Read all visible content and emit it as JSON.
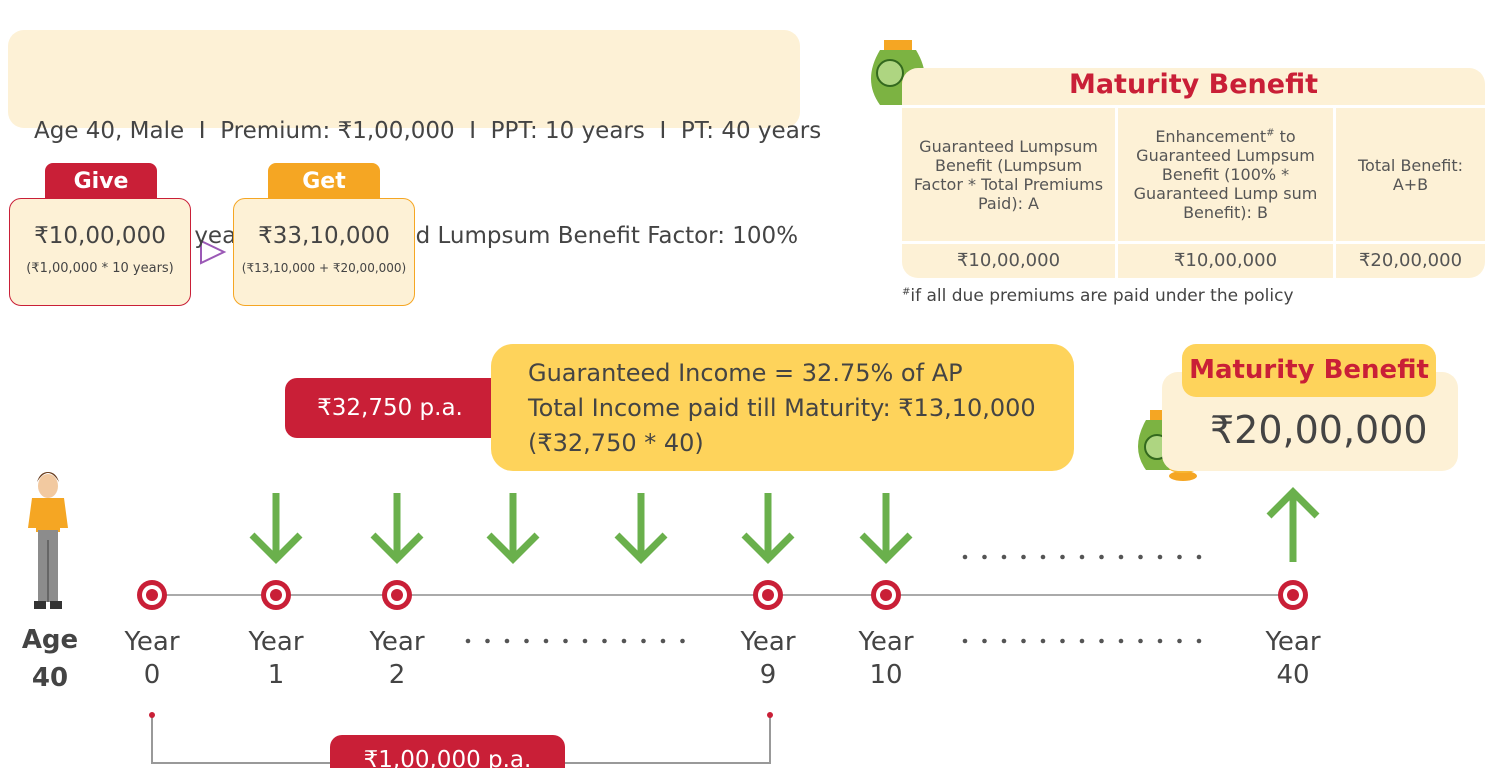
{
  "summary": {
    "lines": [
      "Age 40, Male  I  Premium: ₹1,00,000  I  PPT: 10 years  I  PT: 40 years",
      "Deferment: 0 years  I  Guaranteed Lumpsum Benefit Factor: 100%"
    ]
  },
  "give": {
    "label": "Give",
    "amount": "₹10,00,000",
    "note": "(₹1,00,000 * 10 years)"
  },
  "get": {
    "label": "Get",
    "amount": "₹33,10,000",
    "note": "(₹13,10,000 + ₹20,00,000)"
  },
  "maturity_table": {
    "title": "Maturity Benefit",
    "header_a": "Guaranteed Lumpsum Benefit (Lumpsum Factor * Total Premiums Paid): A",
    "header_b": {
      "pre": "Enhancement",
      "sup": "#",
      "post": " to Guaranteed Lumpsum Benefit (100% * Guaranteed Lump sum Benefit): B"
    },
    "header_c": "Total Benefit: A+B",
    "row": [
      "₹10,00,000",
      "₹10,00,000",
      "₹20,00,000"
    ],
    "footnote": {
      "sup": "#",
      "text": "if all due premiums are paid under the policy"
    }
  },
  "income": {
    "badge": "₹32,750 p.a.",
    "lines": [
      "Guaranteed Income = 32.75% of AP",
      "Total Income paid till Maturity: ₹13,10,000",
      "(₹32,750 * 40)"
    ]
  },
  "maturity_box": {
    "title": "Maturity Benefit",
    "amount": "₹20,00,000"
  },
  "timeline": {
    "age": [
      "Age",
      "40"
    ],
    "years": [
      {
        "label": "Year",
        "num": "0"
      },
      {
        "label": "Year",
        "num": "1"
      },
      {
        "label": "Year",
        "num": "2"
      },
      {
        "label": "Year",
        "num": "9"
      },
      {
        "label": "Year",
        "num": "10"
      },
      {
        "label": "Year",
        "num": "40"
      }
    ]
  },
  "premium_badge": "₹1,00,000 p.a."
}
